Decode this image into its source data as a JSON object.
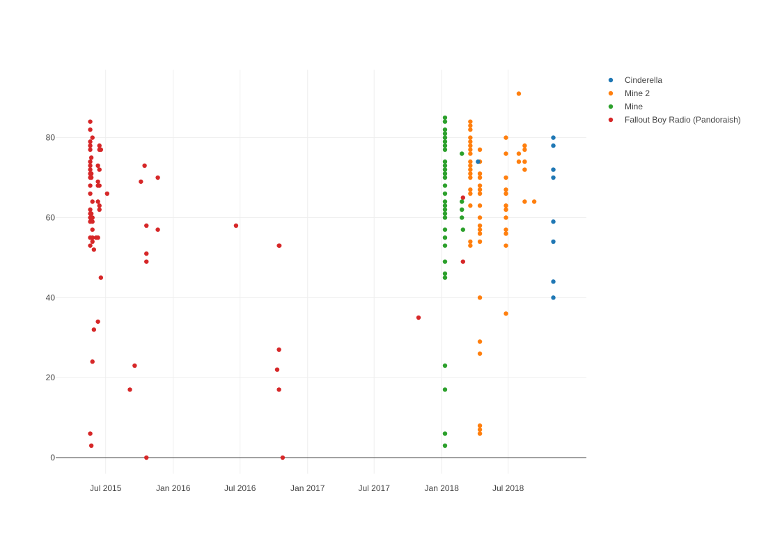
{
  "chart_data": {
    "type": "scatter",
    "title": "",
    "xlabel": "",
    "ylabel": "",
    "x_axis": {
      "type": "date",
      "range": [
        "2015-02-15",
        "2019-01-30"
      ],
      "ticks": [
        {
          "value": "2015-07-01",
          "label": "Jul 2015"
        },
        {
          "value": "2016-01-01",
          "label": "Jan 2016"
        },
        {
          "value": "2016-07-01",
          "label": "Jul 2016"
        },
        {
          "value": "2017-01-01",
          "label": "Jan 2017"
        },
        {
          "value": "2017-07-01",
          "label": "Jul 2017"
        },
        {
          "value": "2018-01-01",
          "label": "Jan 2018"
        },
        {
          "value": "2018-07-01",
          "label": "Jul 2018"
        }
      ]
    },
    "y_axis": {
      "range": [
        -4,
        97
      ],
      "ticks": [
        0,
        20,
        40,
        60,
        80
      ]
    },
    "grid": true,
    "legend_position": "top-right",
    "series": [
      {
        "name": "Cinderella",
        "color": "#1f77b4",
        "points": [
          {
            "x": "2018-04-10",
            "y": 74
          },
          {
            "x": "2018-11-01",
            "y": 80
          },
          {
            "x": "2018-11-01",
            "y": 78
          },
          {
            "x": "2018-11-01",
            "y": 72
          },
          {
            "x": "2018-11-01",
            "y": 70
          },
          {
            "x": "2018-11-01",
            "y": 59
          },
          {
            "x": "2018-11-01",
            "y": 54
          },
          {
            "x": "2018-11-01",
            "y": 44
          },
          {
            "x": "2018-11-01",
            "y": 40
          }
        ]
      },
      {
        "name": "Mine 2",
        "color": "#ff7f0e",
        "points": [
          {
            "x": "2018-03-20",
            "y": 84
          },
          {
            "x": "2018-03-20",
            "y": 83
          },
          {
            "x": "2018-03-20",
            "y": 82
          },
          {
            "x": "2018-03-20",
            "y": 80
          },
          {
            "x": "2018-03-20",
            "y": 79
          },
          {
            "x": "2018-03-20",
            "y": 78
          },
          {
            "x": "2018-03-20",
            "y": 77
          },
          {
            "x": "2018-03-20",
            "y": 76
          },
          {
            "x": "2018-03-20",
            "y": 74
          },
          {
            "x": "2018-03-20",
            "y": 73
          },
          {
            "x": "2018-03-20",
            "y": 72
          },
          {
            "x": "2018-03-20",
            "y": 71
          },
          {
            "x": "2018-03-20",
            "y": 70
          },
          {
            "x": "2018-03-20",
            "y": 67
          },
          {
            "x": "2018-03-20",
            "y": 66
          },
          {
            "x": "2018-03-20",
            "y": 63
          },
          {
            "x": "2018-03-20",
            "y": 54
          },
          {
            "x": "2018-03-20",
            "y": 53
          },
          {
            "x": "2018-04-15",
            "y": 77
          },
          {
            "x": "2018-04-15",
            "y": 74
          },
          {
            "x": "2018-04-15",
            "y": 71
          },
          {
            "x": "2018-04-15",
            "y": 70
          },
          {
            "x": "2018-04-15",
            "y": 68
          },
          {
            "x": "2018-04-15",
            "y": 67
          },
          {
            "x": "2018-04-15",
            "y": 66
          },
          {
            "x": "2018-04-15",
            "y": 63
          },
          {
            "x": "2018-04-15",
            "y": 60
          },
          {
            "x": "2018-04-15",
            "y": 58
          },
          {
            "x": "2018-04-15",
            "y": 57
          },
          {
            "x": "2018-04-15",
            "y": 56
          },
          {
            "x": "2018-04-15",
            "y": 54
          },
          {
            "x": "2018-04-15",
            "y": 40
          },
          {
            "x": "2018-04-15",
            "y": 29
          },
          {
            "x": "2018-04-15",
            "y": 26
          },
          {
            "x": "2018-04-15",
            "y": 8
          },
          {
            "x": "2018-04-15",
            "y": 7
          },
          {
            "x": "2018-04-15",
            "y": 6
          },
          {
            "x": "2018-06-25",
            "y": 80
          },
          {
            "x": "2018-06-25",
            "y": 76
          },
          {
            "x": "2018-06-25",
            "y": 70
          },
          {
            "x": "2018-06-25",
            "y": 67
          },
          {
            "x": "2018-06-25",
            "y": 66
          },
          {
            "x": "2018-06-25",
            "y": 63
          },
          {
            "x": "2018-06-25",
            "y": 62
          },
          {
            "x": "2018-06-25",
            "y": 60
          },
          {
            "x": "2018-06-25",
            "y": 57
          },
          {
            "x": "2018-06-25",
            "y": 56
          },
          {
            "x": "2018-06-25",
            "y": 53
          },
          {
            "x": "2018-06-25",
            "y": 36
          },
          {
            "x": "2018-07-30",
            "y": 91
          },
          {
            "x": "2018-07-30",
            "y": 76
          },
          {
            "x": "2018-07-30",
            "y": 74
          },
          {
            "x": "2018-08-15",
            "y": 78
          },
          {
            "x": "2018-08-15",
            "y": 77
          },
          {
            "x": "2018-08-15",
            "y": 74
          },
          {
            "x": "2018-08-15",
            "y": 72
          },
          {
            "x": "2018-08-15",
            "y": 64
          },
          {
            "x": "2018-09-10",
            "y": 64
          }
        ]
      },
      {
        "name": "Mine",
        "color": "#2ca02c",
        "points": [
          {
            "x": "2018-01-10",
            "y": 85
          },
          {
            "x": "2018-01-10",
            "y": 84
          },
          {
            "x": "2018-01-10",
            "y": 82
          },
          {
            "x": "2018-01-10",
            "y": 81
          },
          {
            "x": "2018-01-10",
            "y": 80
          },
          {
            "x": "2018-01-10",
            "y": 79
          },
          {
            "x": "2018-01-10",
            "y": 78
          },
          {
            "x": "2018-01-10",
            "y": 77
          },
          {
            "x": "2018-01-10",
            "y": 74
          },
          {
            "x": "2018-01-10",
            "y": 73
          },
          {
            "x": "2018-01-10",
            "y": 72
          },
          {
            "x": "2018-01-10",
            "y": 71
          },
          {
            "x": "2018-01-10",
            "y": 70
          },
          {
            "x": "2018-01-10",
            "y": 68
          },
          {
            "x": "2018-01-10",
            "y": 66
          },
          {
            "x": "2018-01-10",
            "y": 64
          },
          {
            "x": "2018-01-10",
            "y": 63
          },
          {
            "x": "2018-01-10",
            "y": 62
          },
          {
            "x": "2018-01-10",
            "y": 61
          },
          {
            "x": "2018-01-10",
            "y": 60
          },
          {
            "x": "2018-01-10",
            "y": 57
          },
          {
            "x": "2018-01-10",
            "y": 55
          },
          {
            "x": "2018-01-10",
            "y": 53
          },
          {
            "x": "2018-01-10",
            "y": 49
          },
          {
            "x": "2018-01-10",
            "y": 46
          },
          {
            "x": "2018-01-10",
            "y": 45
          },
          {
            "x": "2018-01-10",
            "y": 23
          },
          {
            "x": "2018-01-10",
            "y": 17
          },
          {
            "x": "2018-01-10",
            "y": 6
          },
          {
            "x": "2018-01-10",
            "y": 3
          },
          {
            "x": "2018-02-25",
            "y": 76
          },
          {
            "x": "2018-02-25",
            "y": 64
          },
          {
            "x": "2018-02-25",
            "y": 62
          },
          {
            "x": "2018-02-25",
            "y": 60
          },
          {
            "x": "2018-02-28",
            "y": 57
          }
        ]
      },
      {
        "name": "Fallout Boy Radio (Pandoraish)",
        "color": "#d62728",
        "points": [
          {
            "x": "2015-05-20",
            "y": 84
          },
          {
            "x": "2015-05-20",
            "y": 82
          },
          {
            "x": "2015-05-20",
            "y": 79
          },
          {
            "x": "2015-05-20",
            "y": 78
          },
          {
            "x": "2015-05-20",
            "y": 77
          },
          {
            "x": "2015-05-20",
            "y": 74
          },
          {
            "x": "2015-05-20",
            "y": 73
          },
          {
            "x": "2015-05-20",
            "y": 72
          },
          {
            "x": "2015-05-20",
            "y": 71
          },
          {
            "x": "2015-05-20",
            "y": 70
          },
          {
            "x": "2015-05-20",
            "y": 68
          },
          {
            "x": "2015-05-20",
            "y": 66
          },
          {
            "x": "2015-05-20",
            "y": 62
          },
          {
            "x": "2015-05-20",
            "y": 61
          },
          {
            "x": "2015-05-20",
            "y": 60
          },
          {
            "x": "2015-05-20",
            "y": 59
          },
          {
            "x": "2015-05-20",
            "y": 55
          },
          {
            "x": "2015-05-20",
            "y": 53
          },
          {
            "x": "2015-05-20",
            "y": 6
          },
          {
            "x": "2015-05-23",
            "y": 75
          },
          {
            "x": "2015-05-23",
            "y": 71
          },
          {
            "x": "2015-05-23",
            "y": 70
          },
          {
            "x": "2015-05-23",
            "y": 61
          },
          {
            "x": "2015-05-23",
            "y": 60
          },
          {
            "x": "2015-05-23",
            "y": 3
          },
          {
            "x": "2015-05-26",
            "y": 80
          },
          {
            "x": "2015-05-26",
            "y": 64
          },
          {
            "x": "2015-05-26",
            "y": 60
          },
          {
            "x": "2015-05-26",
            "y": 59
          },
          {
            "x": "2015-05-26",
            "y": 57
          },
          {
            "x": "2015-05-26",
            "y": 55
          },
          {
            "x": "2015-05-26",
            "y": 54
          },
          {
            "x": "2015-05-26",
            "y": 24
          },
          {
            "x": "2015-05-30",
            "y": 52
          },
          {
            "x": "2015-05-30",
            "y": 32
          },
          {
            "x": "2015-06-05",
            "y": 55
          },
          {
            "x": "2015-06-10",
            "y": 73
          },
          {
            "x": "2015-06-10",
            "y": 69
          },
          {
            "x": "2015-06-10",
            "y": 68
          },
          {
            "x": "2015-06-10",
            "y": 64
          },
          {
            "x": "2015-06-10",
            "y": 55
          },
          {
            "x": "2015-06-10",
            "y": 34
          },
          {
            "x": "2015-06-14",
            "y": 78
          },
          {
            "x": "2015-06-14",
            "y": 77
          },
          {
            "x": "2015-06-14",
            "y": 72
          },
          {
            "x": "2015-06-14",
            "y": 68
          },
          {
            "x": "2015-06-14",
            "y": 63
          },
          {
            "x": "2015-06-14",
            "y": 62
          },
          {
            "x": "2015-06-18",
            "y": 77
          },
          {
            "x": "2015-06-18",
            "y": 45
          },
          {
            "x": "2015-07-05",
            "y": 66
          },
          {
            "x": "2015-09-05",
            "y": 17
          },
          {
            "x": "2015-09-18",
            "y": 23
          },
          {
            "x": "2015-10-05",
            "y": 69
          },
          {
            "x": "2015-10-15",
            "y": 73
          },
          {
            "x": "2015-10-20",
            "y": 58
          },
          {
            "x": "2015-10-20",
            "y": 51
          },
          {
            "x": "2015-10-20",
            "y": 49
          },
          {
            "x": "2015-10-20",
            "y": 0
          },
          {
            "x": "2015-11-20",
            "y": 70
          },
          {
            "x": "2015-11-20",
            "y": 57
          },
          {
            "x": "2016-06-20",
            "y": 58
          },
          {
            "x": "2016-10-15",
            "y": 53
          },
          {
            "x": "2016-10-16",
            "y": 53
          },
          {
            "x": "2016-10-10",
            "y": 22
          },
          {
            "x": "2016-10-15",
            "y": 27
          },
          {
            "x": "2016-10-15",
            "y": 17
          },
          {
            "x": "2016-10-25",
            "y": 0
          },
          {
            "x": "2017-10-30",
            "y": 35
          },
          {
            "x": "2018-02-28",
            "y": 65
          },
          {
            "x": "2018-02-28",
            "y": 49
          }
        ]
      }
    ]
  }
}
